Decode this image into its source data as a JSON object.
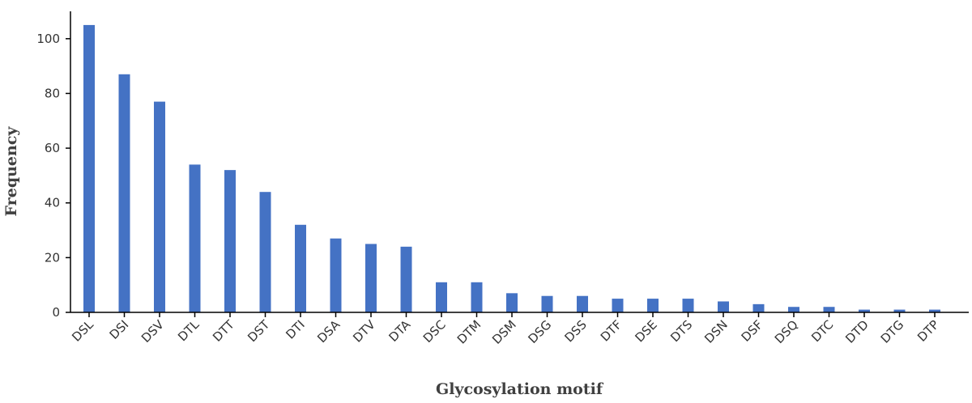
{
  "chart_data": {
    "type": "bar",
    "xlabel": "Glycosylation motif",
    "ylabel": "Frequency",
    "ylim": [
      0,
      110
    ],
    "yticks": [
      0,
      20,
      40,
      60,
      80,
      100
    ],
    "grid": false,
    "bar_color": "#4472C4",
    "categories": [
      "DSL",
      "DSI",
      "DSV",
      "DTL",
      "DTT",
      "DST",
      "DTI",
      "DSA",
      "DTV",
      "DTA",
      "DSC",
      "DTM",
      "DSM",
      "DSG",
      "DSS",
      "DTF",
      "DSE",
      "DTS",
      "DSN",
      "DSF",
      "DSQ",
      "DTC",
      "DTD",
      "DTG",
      "DTP"
    ],
    "values": [
      105,
      87,
      77,
      54,
      52,
      44,
      32,
      27,
      25,
      24,
      11,
      11,
      7,
      6,
      6,
      5,
      5,
      5,
      4,
      3,
      2,
      2,
      1,
      1,
      1
    ]
  }
}
